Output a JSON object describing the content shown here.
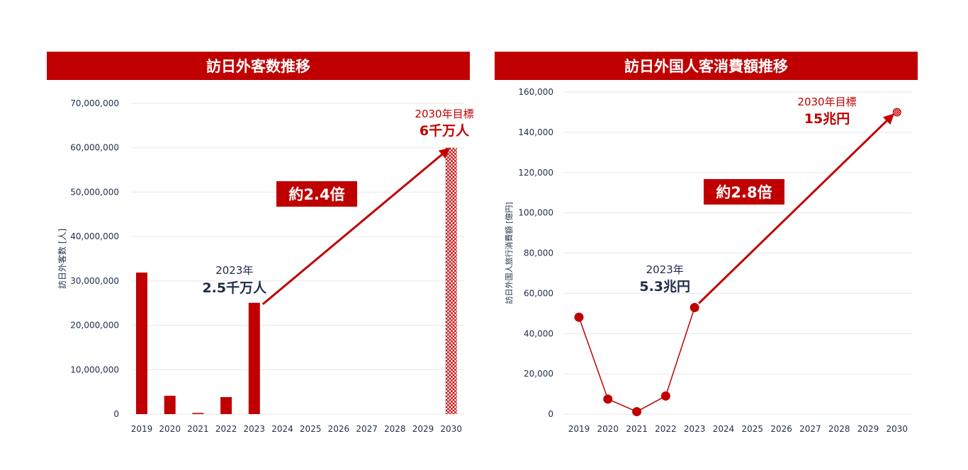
{
  "chart_data": [
    {
      "type": "bar",
      "title": "訪日外客数推移",
      "ylabel": "訪日外客数 [人]",
      "categories": [
        "2019",
        "2020",
        "2021",
        "2022",
        "2023",
        "2024",
        "2025",
        "2026",
        "2027",
        "2028",
        "2029",
        "2030"
      ],
      "values": [
        31880000,
        4120000,
        250000,
        3830000,
        25070000,
        null,
        null,
        null,
        null,
        null,
        null,
        60000000
      ],
      "target_index": 11,
      "ylim": [
        0,
        70000000
      ],
      "yticks": [
        0,
        10000000,
        20000000,
        30000000,
        40000000,
        50000000,
        60000000,
        70000000
      ],
      "ytick_labels": [
        "0",
        "10,000,000",
        "20,000,000",
        "30,000,000",
        "40,000,000",
        "50,000,000",
        "60,000,000",
        "70,000,000"
      ],
      "annotations": {
        "current_year": "2023年",
        "current_value": "2.5千万人",
        "target_year": "2030年目標",
        "target_value": "6千万人",
        "multiplier": "約2.4倍"
      },
      "colors": {
        "bar": "#c00000",
        "axis_text": "#1f2d4a",
        "accent": "#c00000"
      }
    },
    {
      "type": "line",
      "title": "訪日外国人客消費額推移",
      "ylabel": "訪日外国人旅行消費額 [億円]",
      "categories": [
        "2019",
        "2020",
        "2021",
        "2022",
        "2023",
        "2024",
        "2025",
        "2026",
        "2027",
        "2028",
        "2029",
        "2030"
      ],
      "values": [
        48135,
        7446,
        1208,
        8987,
        52923,
        null,
        null,
        null,
        null,
        null,
        null,
        150000
      ],
      "target_index": 11,
      "ylim": [
        0,
        160000
      ],
      "yticks": [
        0,
        20000,
        40000,
        60000,
        80000,
        100000,
        120000,
        140000,
        160000
      ],
      "ytick_labels": [
        "0",
        "20,000",
        "40,000",
        "60,000",
        "80,000",
        "100,000",
        "120,000",
        "140,000",
        "160,000"
      ],
      "annotations": {
        "current_year": "2023年",
        "current_value": "5.3兆円",
        "target_year": "2030年目標",
        "target_value": "15兆円",
        "multiplier": "約2.8倍"
      },
      "colors": {
        "line": "#c00000",
        "axis_text": "#1f2d4a",
        "accent": "#c00000"
      }
    }
  ]
}
